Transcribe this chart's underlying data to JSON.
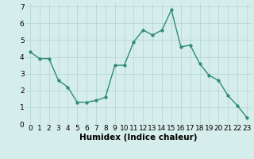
{
  "x": [
    0,
    1,
    2,
    3,
    4,
    5,
    6,
    7,
    8,
    9,
    10,
    11,
    12,
    13,
    14,
    15,
    16,
    17,
    18,
    19,
    20,
    21,
    22,
    23
  ],
  "y": [
    4.3,
    3.9,
    3.9,
    2.6,
    2.2,
    1.3,
    1.3,
    1.4,
    1.6,
    3.5,
    3.5,
    4.9,
    5.6,
    5.3,
    5.6,
    6.8,
    4.6,
    4.7,
    3.6,
    2.9,
    2.6,
    1.7,
    1.1,
    0.4
  ],
  "line_color": "#2e8b77",
  "marker_color": "#2e8b77",
  "bg_color": "#d6eeeb",
  "grid_color": "#b0d4d0",
  "xlabel": "Humidex (Indice chaleur)",
  "xlabel_fontsize": 7.5,
  "ylim": [
    0,
    7.2
  ],
  "xlim": [
    -0.5,
    23.5
  ],
  "yticks": [
    0,
    1,
    2,
    3,
    4,
    5,
    6,
    7
  ],
  "xticks": [
    0,
    1,
    2,
    3,
    4,
    5,
    6,
    7,
    8,
    9,
    10,
    11,
    12,
    13,
    14,
    15,
    16,
    17,
    18,
    19,
    20,
    21,
    22,
    23
  ],
  "tick_fontsize": 6.5,
  "line_width": 1.0,
  "marker_size": 2.5
}
